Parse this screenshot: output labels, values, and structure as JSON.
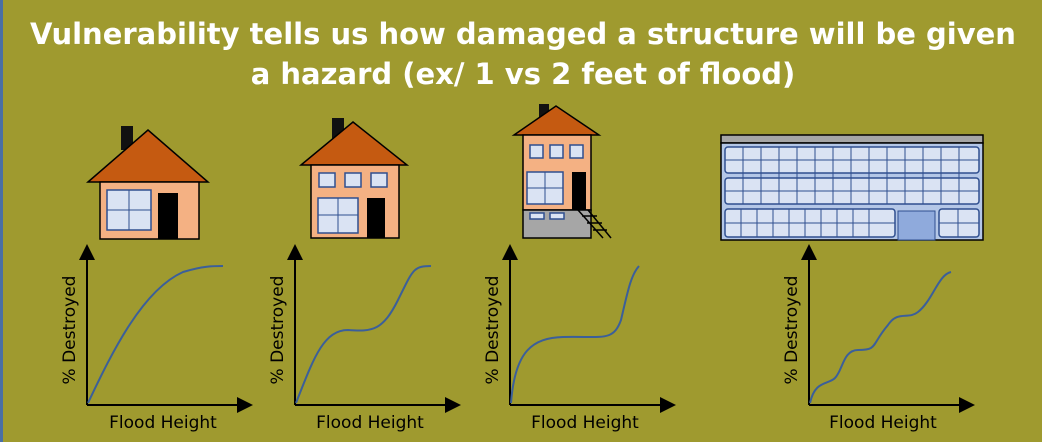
{
  "title": "Vulnerability tells us how damaged a structure will be given a hazard (ex/ 1 vs 2 feet of flood)",
  "panels": [
    {
      "y_label": "% Destroyed",
      "x_label": "Flood Height"
    },
    {
      "y_label": "% Destroyed",
      "x_label": "Flood Height"
    },
    {
      "y_label": "% Destroyed",
      "x_label": "Flood Height"
    },
    {
      "y_label": "% Destroyed",
      "x_label": "Flood Height"
    }
  ]
}
